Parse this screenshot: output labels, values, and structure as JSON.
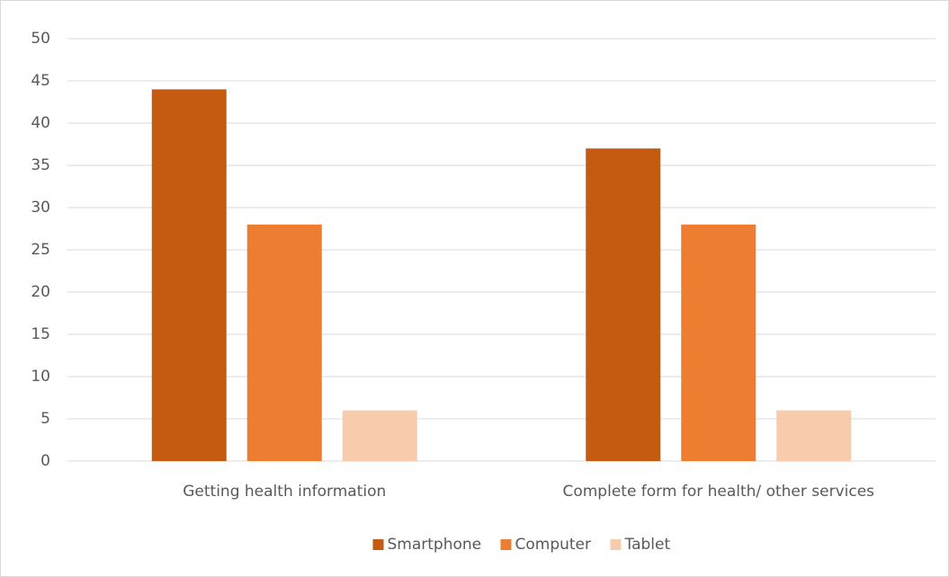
{
  "chart_data": {
    "type": "bar",
    "categories": [
      "Getting health information",
      "Complete form for health/ other services"
    ],
    "series": [
      {
        "name": "Smartphone",
        "color": "#c55a11",
        "values": [
          44,
          37
        ]
      },
      {
        "name": "Computer",
        "color": "#ed7d31",
        "values": [
          28,
          28
        ]
      },
      {
        "name": "Tablet",
        "color": "#f8cbad",
        "values": [
          6,
          6
        ]
      }
    ],
    "ylim": [
      0,
      50
    ],
    "yticks": [
      0,
      5,
      10,
      15,
      20,
      25,
      30,
      35,
      40,
      45,
      50
    ],
    "grid": true,
    "legend": "bottom"
  }
}
